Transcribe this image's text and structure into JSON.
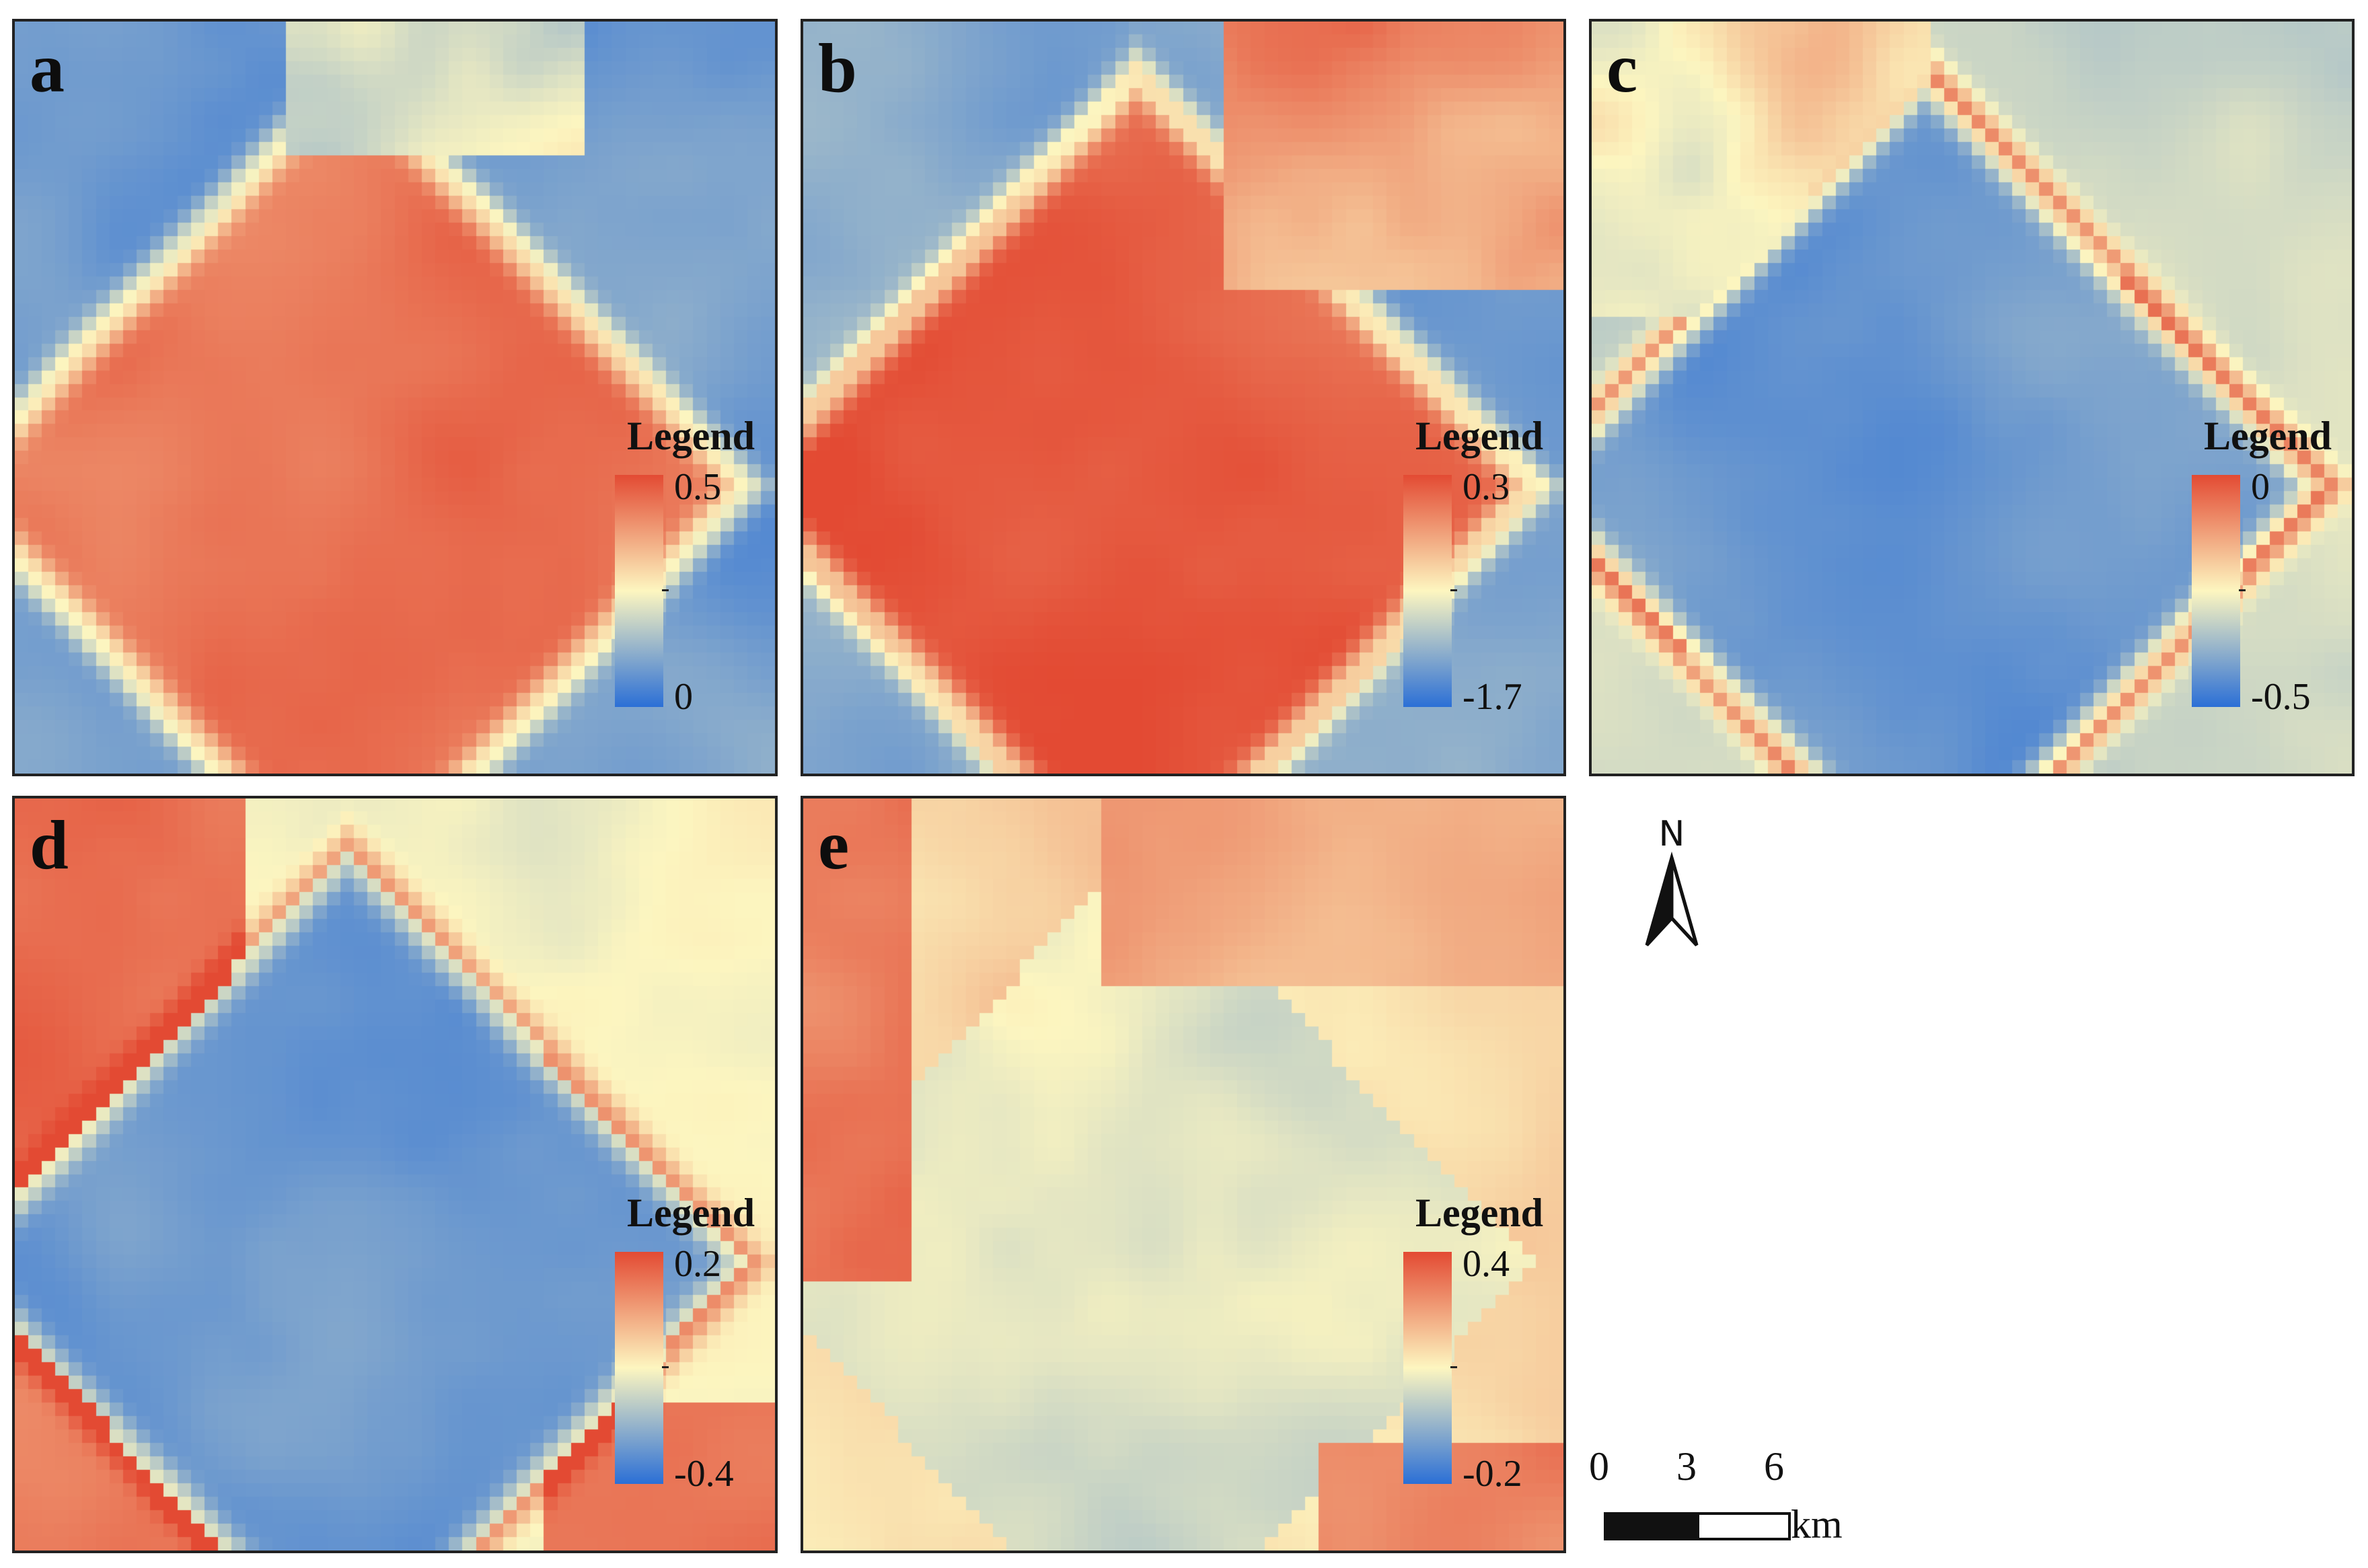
{
  "panels": [
    {
      "letter": "a",
      "legend_title": "Legend",
      "legend_max": "0.5",
      "legend_min": "0"
    },
    {
      "letter": "b",
      "legend_title": "Legend",
      "legend_max": "0.3",
      "legend_min": "-1.7"
    },
    {
      "letter": "c",
      "legend_title": "Legend",
      "legend_max": "0",
      "legend_min": "-0.5"
    },
    {
      "letter": "d",
      "legend_title": "Legend",
      "legend_max": "0.2",
      "legend_min": "-0.4"
    },
    {
      "letter": "e",
      "legend_title": "Legend",
      "legend_max": "0.4",
      "legend_min": "-0.2"
    }
  ],
  "north_arrow_label": "N",
  "scale_bar": {
    "ticks": [
      "0",
      "3",
      "6"
    ],
    "unit": "km"
  },
  "colors": {
    "high": "#e34a33",
    "mid": "#fdf6c0",
    "low": "#2b6fd6"
  }
}
